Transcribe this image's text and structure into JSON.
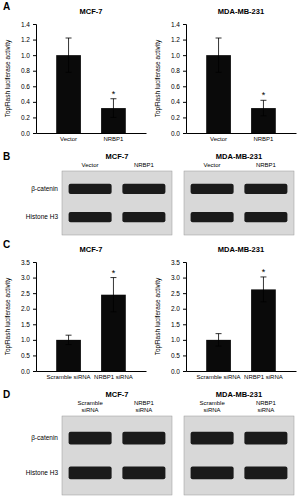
{
  "chart_data": [
    {
      "type": "bar",
      "title": "MCF-7",
      "categories": [
        "Vector",
        "NRBP1"
      ],
      "values": [
        1.0,
        0.32
      ],
      "errors": [
        0.22,
        0.12
      ],
      "color": "#0a0a0a",
      "ylabel": "TopFlash luciferase activity",
      "ylim": [
        0,
        1.4
      ],
      "yticks": [
        {
          "value": 0.0,
          "label": "0.0"
        },
        0.2,
        0.4,
        0.6,
        0.8,
        {
          "value": 1.0,
          "label": "1.0"
        },
        1.2,
        1.4
      ],
      "annotations": [
        {
          "text": "A"
        },
        {
          "text": "*",
          "category": "NRBP1"
        }
      ]
    },
    {
      "type": "bar",
      "title": "MDA-MB-231",
      "categories": [
        "Vector",
        "NRBP1"
      ],
      "values": [
        1.0,
        0.32
      ],
      "errors": [
        0.22,
        0.1
      ],
      "color": "#0a0a0a",
      "ylabel": "TopFlash luciferase activity",
      "ylim": [
        0,
        1.4
      ],
      "yticks": [
        {
          "value": 0.0,
          "label": "0.0"
        },
        0.2,
        0.4,
        0.6,
        0.8,
        {
          "value": 1.0,
          "label": "1.0"
        },
        1.2,
        1.4
      ],
      "annotations": [
        {
          "text": "*",
          "category": "NRBP1"
        }
      ]
    },
    {
      "type": "blot",
      "title": "MCF-7",
      "categories": [
        "Vector",
        "NRBP1"
      ],
      "row_labels": [
        "β-catenin",
        "Histone H3"
      ],
      "color": "#1a1a1a",
      "background": "#d8d8d8",
      "annotations": [
        {
          "text": "B"
        }
      ]
    },
    {
      "type": "blot",
      "title": "MDA-MB-231",
      "categories": [
        "Vector",
        "NRBP1"
      ],
      "color": "#1a1a1a",
      "background": "#d8d8d8"
    },
    {
      "type": "bar",
      "title": "MCF-7",
      "categories": [
        "Scramble siRNA",
        "NRBP1 siRNA"
      ],
      "values": [
        1.0,
        2.45
      ],
      "errors": [
        0.15,
        0.55
      ],
      "color": "#0a0a0a",
      "ylabel": "TopFlash luciferase activity",
      "ylim": [
        0,
        3.5
      ],
      "yticks": [
        {
          "value": 0.0,
          "label": "0.0"
        },
        0.5,
        {
          "value": 1.0,
          "label": "1.0"
        },
        1.5,
        {
          "value": 2.0,
          "label": "2.0"
        },
        2.5,
        {
          "value": 3.0,
          "label": "3.0"
        },
        3.5
      ],
      "annotations": [
        {
          "text": "C"
        },
        {
          "text": "*",
          "category": "NRBP1 siRNA"
        }
      ]
    },
    {
      "type": "bar",
      "title": "MDA-MB-231",
      "categories": [
        "Scramble siRNA",
        "NRBP1 siRNA"
      ],
      "values": [
        1.0,
        2.62
      ],
      "errors": [
        0.2,
        0.4
      ],
      "color": "#0a0a0a",
      "ylabel": "TopFlash luciferase activity",
      "ylim": [
        0,
        3.5
      ],
      "yticks": [
        {
          "value": 0.0,
          "label": "0.0"
        },
        0.5,
        {
          "value": 1.0,
          "label": "1.0"
        },
        1.5,
        {
          "value": 2.0,
          "label": "2.0"
        },
        2.5,
        {
          "value": 3.0,
          "label": "3.0"
        },
        3.5
      ],
      "annotations": [
        {
          "text": "*",
          "category": "NRBP1 siRNA"
        }
      ]
    },
    {
      "type": "blot",
      "title": "MCF-7",
      "categories": [
        "Scramble\nsiRNA",
        "NRBP1\nsiRNA"
      ],
      "row_labels": [
        "β-catenin",
        "Histone H3"
      ],
      "color": "#1a1a1a",
      "background": "#d8d8d8",
      "annotations": [
        {
          "text": "D"
        }
      ]
    },
    {
      "type": "blot",
      "title": "MDA-MB-231",
      "categories": [
        "Scramble\nsiRNA",
        "NRBP1\nsiRNA"
      ],
      "color": "#1a1a1a",
      "background": "#d8d8d8"
    }
  ]
}
